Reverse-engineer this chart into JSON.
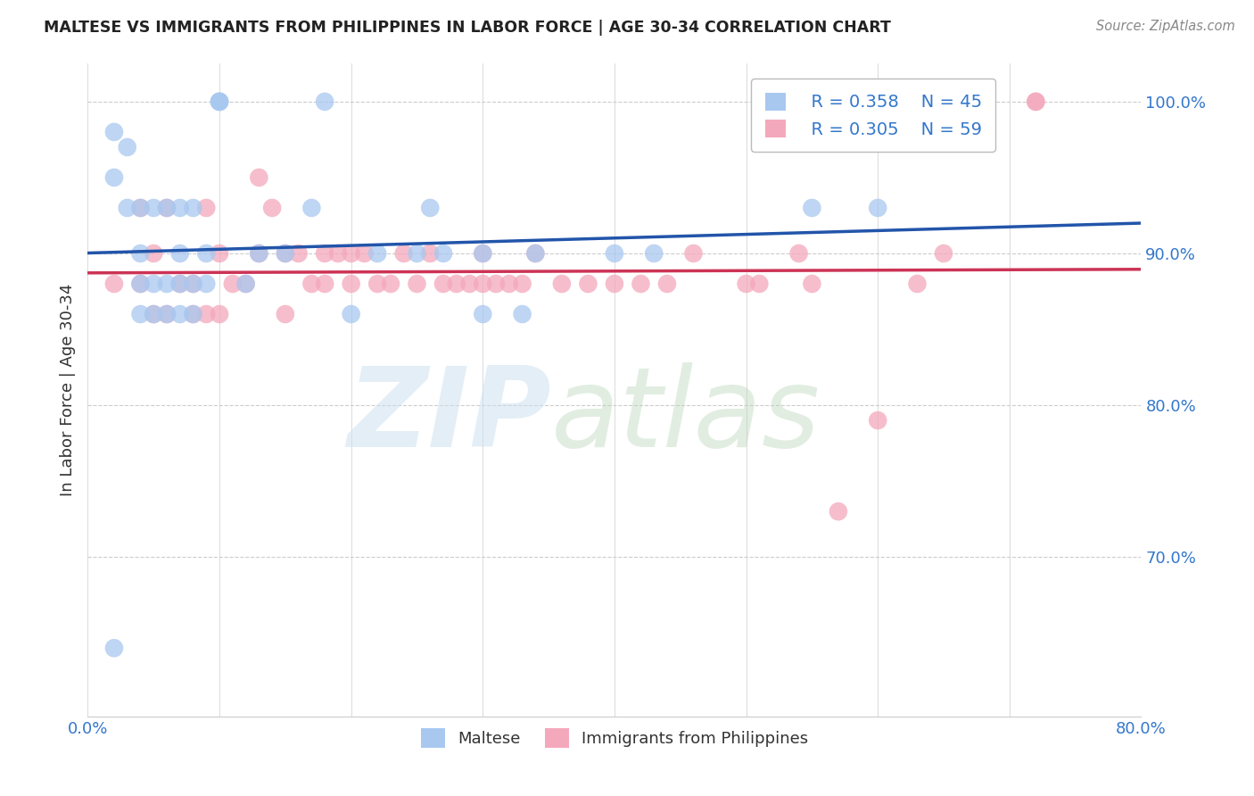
{
  "title": "MALTESE VS IMMIGRANTS FROM PHILIPPINES IN LABOR FORCE | AGE 30-34 CORRELATION CHART",
  "source_text": "Source: ZipAtlas.com",
  "ylabel": "In Labor Force | Age 30-34",
  "xlim": [
    0.0,
    0.8
  ],
  "ylim": [
    0.595,
    1.025
  ],
  "xtick_vals": [
    0.0,
    0.1,
    0.2,
    0.3,
    0.4,
    0.5,
    0.6,
    0.7,
    0.8
  ],
  "ytick_vals": [
    0.7,
    0.8,
    0.9,
    1.0
  ],
  "ytick_labels": [
    "70.0%",
    "80.0%",
    "90.0%",
    "100.0%"
  ],
  "blue_color": "#a8c8f0",
  "pink_color": "#f4a8bc",
  "blue_line_color": "#2255aa",
  "pink_line_color": "#cc3355",
  "blue_R": 0.358,
  "blue_N": 45,
  "pink_R": 0.305,
  "pink_N": 59,
  "legend_label_blue": "Maltese",
  "legend_label_pink": "Immigrants from Philippines",
  "grid_color": "#cccccc",
  "grid_style": "--",
  "background_color": "#ffffff",
  "title_color": "#222222",
  "stat_color": "#3377cc",
  "tick_label_color": "#3377cc",
  "source_color": "#888888",
  "blue_scatter_x": [
    0.02,
    0.02,
    0.03,
    0.03,
    0.04,
    0.04,
    0.04,
    0.04,
    0.05,
    0.05,
    0.05,
    0.06,
    0.06,
    0.06,
    0.07,
    0.07,
    0.07,
    0.07,
    0.08,
    0.08,
    0.08,
    0.09,
    0.09,
    0.1,
    0.1,
    0.1,
    0.12,
    0.13,
    0.15,
    0.17,
    0.18,
    0.2,
    0.22,
    0.25,
    0.26,
    0.27,
    0.3,
    0.3,
    0.33,
    0.34,
    0.4,
    0.43,
    0.55,
    0.6,
    0.02
  ],
  "blue_scatter_y": [
    0.95,
    0.98,
    0.93,
    0.97,
    0.86,
    0.88,
    0.9,
    0.93,
    0.86,
    0.88,
    0.93,
    0.86,
    0.88,
    0.93,
    0.86,
    0.88,
    0.9,
    0.93,
    0.86,
    0.88,
    0.93,
    0.88,
    0.9,
    1.0,
    1.0,
    1.0,
    0.88,
    0.9,
    0.9,
    0.93,
    1.0,
    0.86,
    0.9,
    0.9,
    0.93,
    0.9,
    0.86,
    0.9,
    0.86,
    0.9,
    0.9,
    0.9,
    0.93,
    0.93,
    0.64
  ],
  "pink_scatter_x": [
    0.02,
    0.04,
    0.05,
    0.05,
    0.06,
    0.07,
    0.08,
    0.08,
    0.09,
    0.1,
    0.1,
    0.11,
    0.12,
    0.13,
    0.14,
    0.15,
    0.15,
    0.16,
    0.17,
    0.18,
    0.18,
    0.19,
    0.2,
    0.2,
    0.21,
    0.22,
    0.23,
    0.24,
    0.25,
    0.26,
    0.27,
    0.28,
    0.29,
    0.3,
    0.31,
    0.32,
    0.33,
    0.34,
    0.36,
    0.38,
    0.4,
    0.42,
    0.44,
    0.46,
    0.5,
    0.51,
    0.54,
    0.55,
    0.57,
    0.6,
    0.63,
    0.65,
    0.72,
    0.04,
    0.06,
    0.09,
    0.13,
    0.3,
    0.72
  ],
  "pink_scatter_y": [
    0.88,
    0.88,
    0.86,
    0.9,
    0.86,
    0.88,
    0.86,
    0.88,
    0.86,
    0.86,
    0.9,
    0.88,
    0.88,
    0.9,
    0.93,
    0.86,
    0.9,
    0.9,
    0.88,
    0.88,
    0.9,
    0.9,
    0.88,
    0.9,
    0.9,
    0.88,
    0.88,
    0.9,
    0.88,
    0.9,
    0.88,
    0.88,
    0.88,
    0.9,
    0.88,
    0.88,
    0.88,
    0.9,
    0.88,
    0.88,
    0.88,
    0.88,
    0.88,
    0.9,
    0.88,
    0.88,
    0.9,
    0.88,
    0.73,
    0.79,
    0.88,
    0.9,
    1.0,
    0.93,
    0.93,
    0.93,
    0.95,
    0.88,
    1.0
  ]
}
